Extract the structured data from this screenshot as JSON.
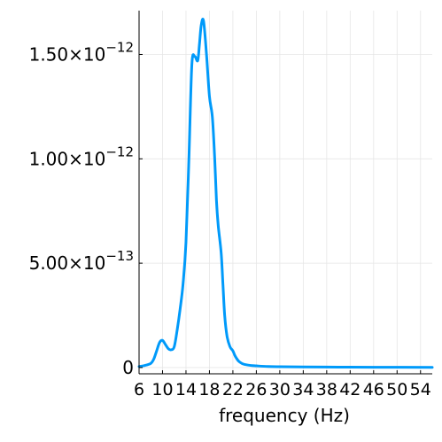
{
  "chart_data": {
    "type": "line",
    "title": "",
    "xlabel": "frequency (Hz)",
    "ylabel": "",
    "xlim": [
      6,
      56
    ],
    "ylim": [
      -3e-14,
      1.71e-12
    ],
    "grid": true,
    "legend": "none",
    "x_ticks": [
      6,
      10,
      14,
      18,
      22,
      26,
      30,
      34,
      38,
      42,
      46,
      50,
      54
    ],
    "x_tick_labels": [
      "6",
      "10",
      "14",
      "18",
      "22",
      "26",
      "30",
      "34",
      "38",
      "42",
      "46",
      "50",
      "54"
    ],
    "y_ticks": [
      {
        "value": 0,
        "mantissa": "0",
        "exponent": ""
      },
      {
        "value": 5e-13,
        "mantissa": "5.00×10",
        "exponent": "−13"
      },
      {
        "value": 1e-12,
        "mantissa": "1.00×10",
        "exponent": "−12"
      },
      {
        "value": 1.5e-12,
        "mantissa": "1.50×10",
        "exponent": "−12"
      }
    ],
    "series": [
      {
        "color": "#009AFA",
        "x": [
          6,
          7,
          8,
          8.5,
          9,
          9.5,
          10,
          10.5,
          11,
          11.5,
          12,
          12.5,
          13,
          13.5,
          14,
          14.5,
          15,
          15.5,
          16,
          16.3,
          16.6,
          17,
          17.5,
          18,
          18.5,
          18.9,
          19.2,
          19.5,
          20,
          20.3,
          20.6,
          21,
          21.5,
          22,
          22.3,
          22.6,
          23,
          23.5,
          24,
          25,
          26,
          28,
          30,
          34,
          40,
          46,
          56
        ],
        "y": [
          5e-15,
          1e-14,
          2e-14,
          4e-14,
          8e-14,
          1.2e-13,
          1.3e-13,
          1.1e-13,
          9e-14,
          8.5e-14,
          1e-13,
          1.8e-13,
          2.8e-13,
          4e-13,
          6e-13,
          1e-12,
          1.45e-12,
          1.49e-12,
          1.47e-12,
          1.55e-12,
          1.64e-12,
          1.66e-12,
          1.5e-12,
          1.3e-12,
          1.2e-12,
          1e-12,
          8e-13,
          6.8e-13,
          5.5e-13,
          4e-13,
          2.5e-13,
          1.5e-13,
          1e-13,
          8e-14,
          6e-14,
          4.5e-14,
          3e-14,
          2e-14,
          1.5e-14,
          1e-14,
          8e-15,
          5e-15,
          4e-15,
          3e-15,
          2e-15,
          1.5e-15,
          1e-15
        ]
      }
    ]
  }
}
